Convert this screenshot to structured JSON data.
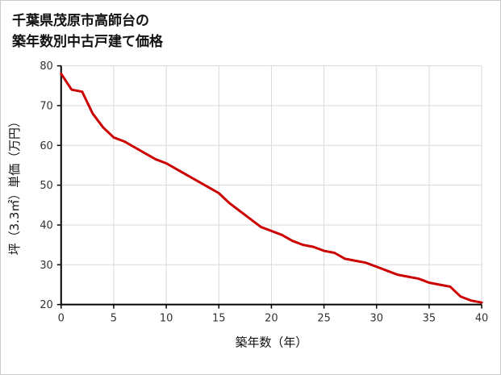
{
  "page": {
    "title_line1": "千葉県茂原市高師台の",
    "title_line2": "築年数別中古戸建て価格"
  },
  "chart_data": {
    "type": "line",
    "title": "千葉県茂原市高師台の築年数別中古戸建て価格",
    "xlabel": "築年数（年）",
    "ylabel": "坪（3.3㎡）単価（万円）",
    "series_name": "坪単価",
    "x": [
      0,
      1,
      2,
      3,
      4,
      5,
      6,
      7,
      8,
      9,
      10,
      11,
      12,
      13,
      14,
      15,
      16,
      17,
      18,
      19,
      20,
      21,
      22,
      23,
      24,
      25,
      26,
      27,
      28,
      29,
      30,
      31,
      32,
      33,
      34,
      35,
      36,
      37,
      38,
      39,
      40
    ],
    "values": [
      78,
      74,
      73.5,
      68,
      64.5,
      62,
      61,
      59.5,
      58,
      56.5,
      55.5,
      54,
      52.5,
      51,
      49.5,
      48,
      45.5,
      43.5,
      41.5,
      39.5,
      38.5,
      37.5,
      36,
      35,
      34.5,
      33.5,
      33,
      31.5,
      31,
      30.5,
      29.5,
      28.5,
      27.5,
      27,
      26.5,
      25.5,
      25,
      24.5,
      22,
      21,
      20.5
    ],
    "xlim": [
      0,
      40
    ],
    "ylim": [
      20,
      80
    ],
    "xticks": [
      0,
      5,
      10,
      15,
      20,
      25,
      30,
      35,
      40
    ],
    "yticks": [
      20,
      30,
      40,
      50,
      60,
      70,
      80
    ],
    "grid": true,
    "legend": "none",
    "line_color": "#cc0000",
    "grid_color": "#d9d9d9",
    "axis_color": "#000000",
    "tick_label_color": "#333333",
    "axis_label_color": "#111111"
  }
}
